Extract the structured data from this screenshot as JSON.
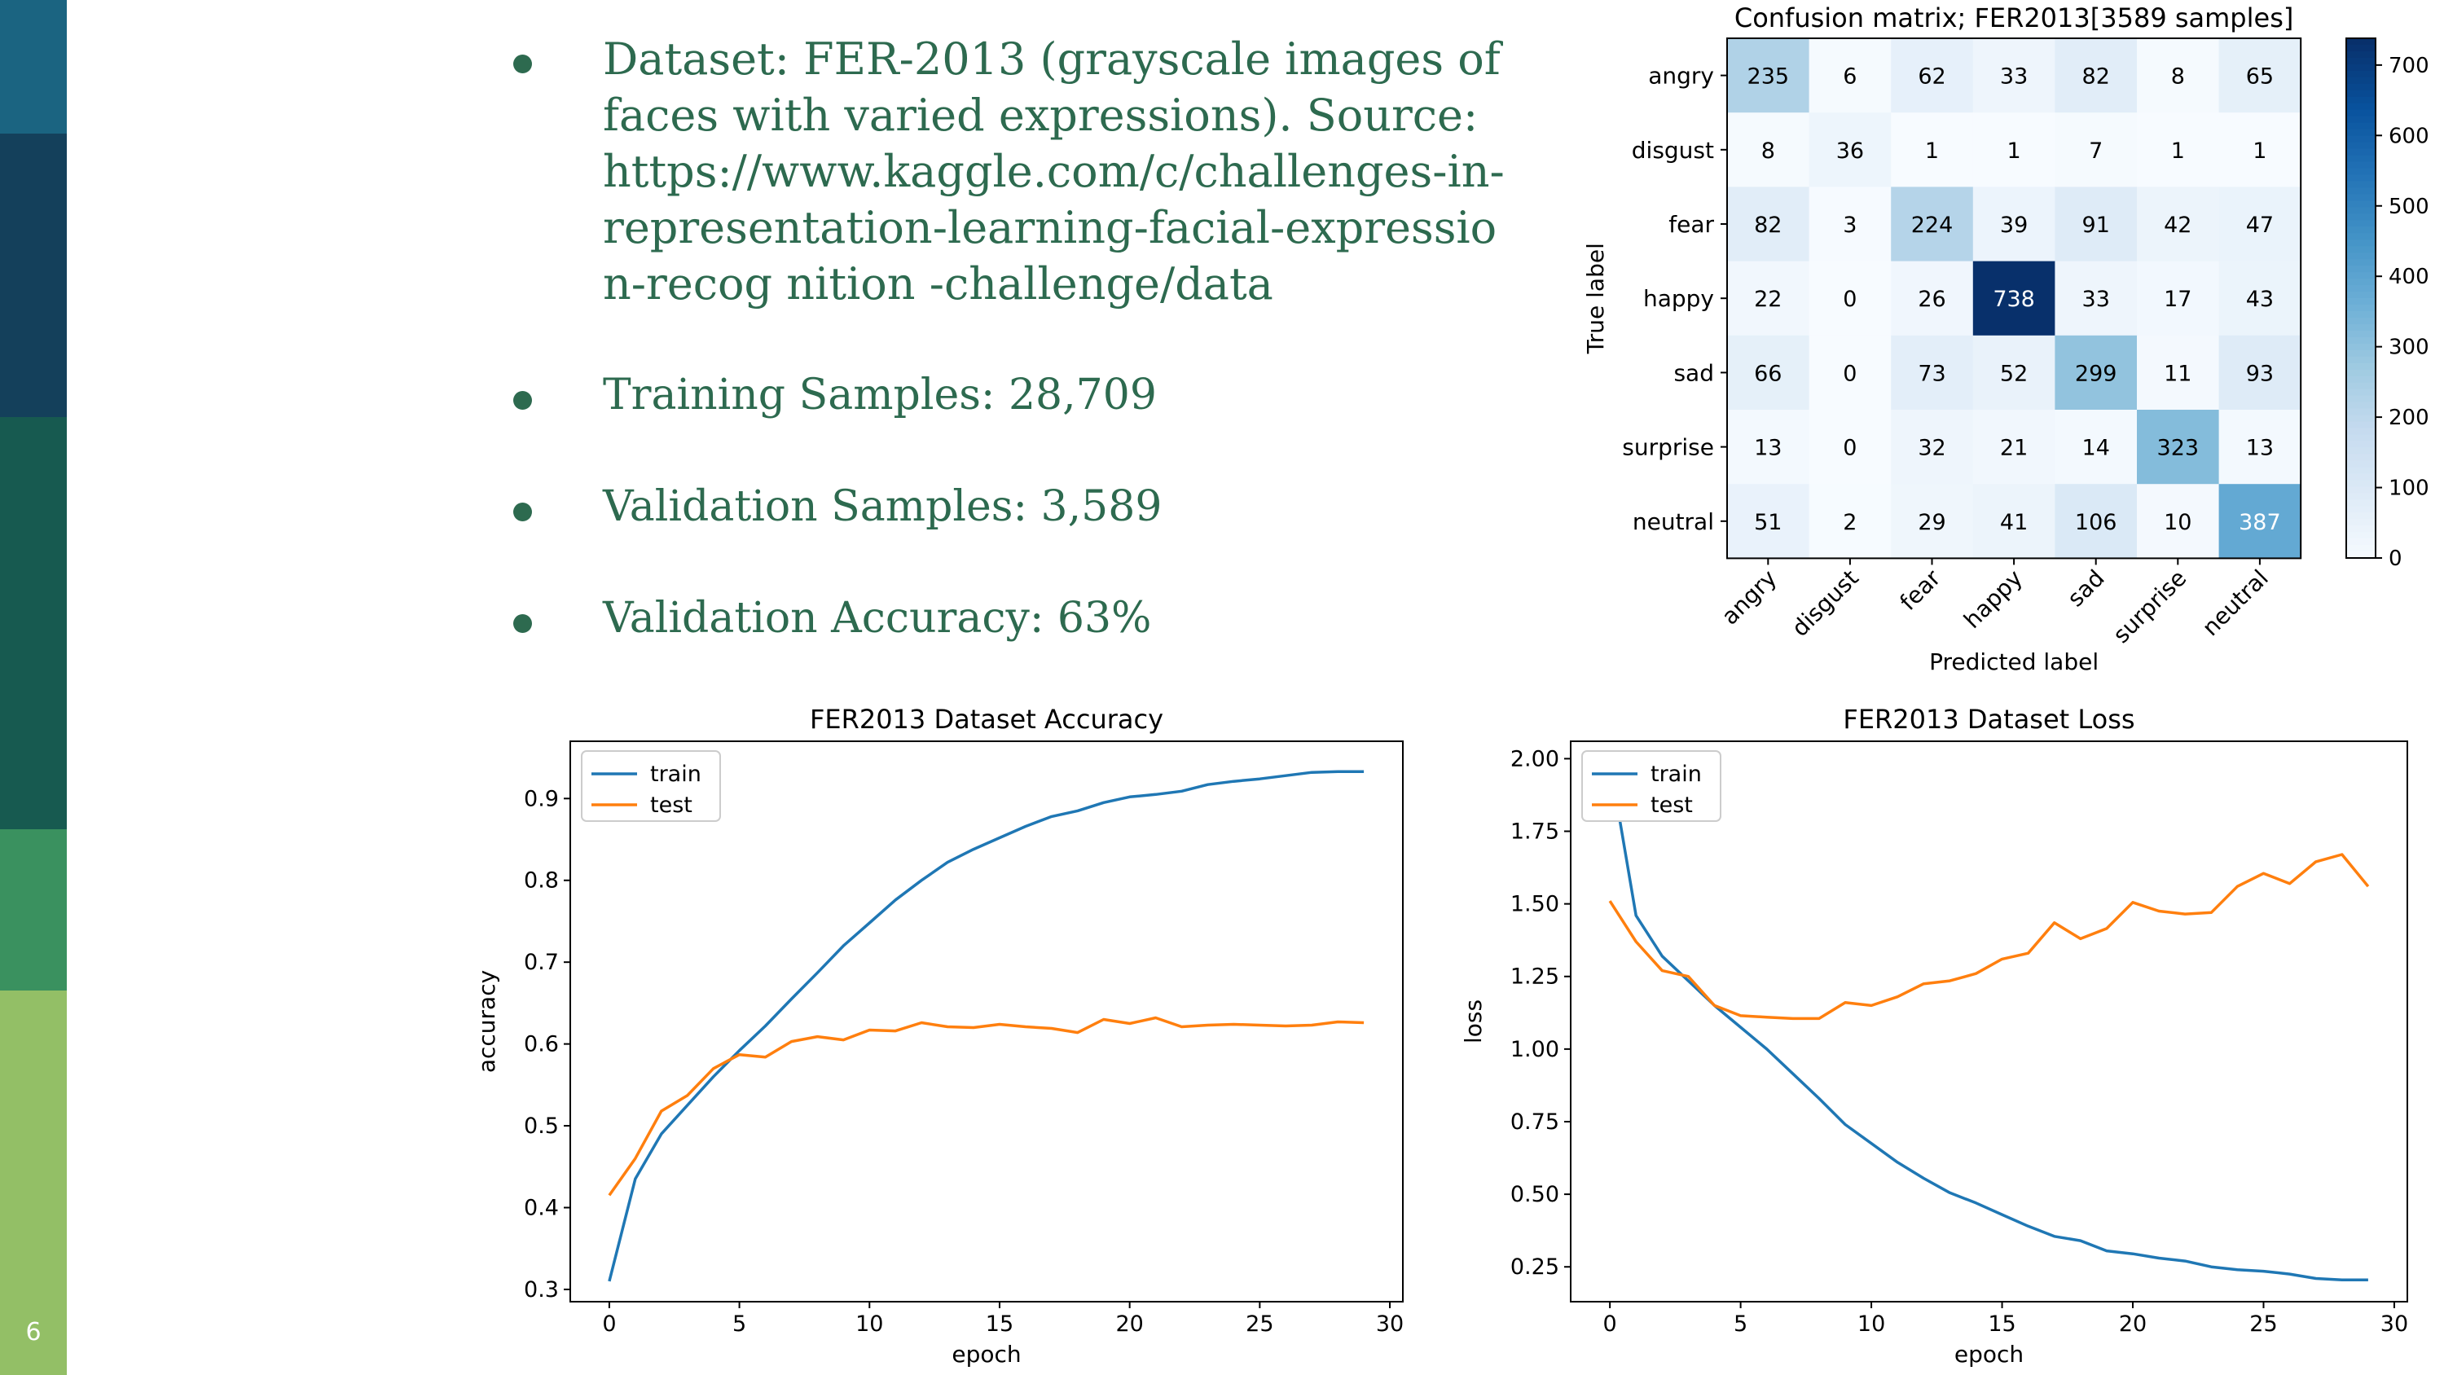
{
  "slide": {
    "number": "6",
    "strip_colors": [
      "#1b6481",
      "#14405b",
      "#175a50",
      "#3a915f",
      "#93bf66"
    ],
    "text_color": "#2d6a4f"
  },
  "bullets": [
    {
      "text": "Dataset: FER-2013 (grayscale images of faces with varied expressions). Source: https://www.kaggle.com/c/challenges-in-representation-learning-facial-expression-recog nition -challenge/data"
    },
    {
      "text": "Training Samples: 28,709"
    },
    {
      "text": "Validation Samples: 3,589"
    },
    {
      "text": "Validation Accuracy: 63%"
    }
  ],
  "chart_data": [
    {
      "type": "heatmap",
      "title": "Confusion matrix; FER2013[3589 samples]",
      "xlabel": "Predicted label",
      "ylabel": "True label",
      "labels": [
        "angry",
        "disgust",
        "fear",
        "happy",
        "sad",
        "surprise",
        "neutral"
      ],
      "matrix": [
        [
          235,
          6,
          62,
          33,
          82,
          8,
          65
        ],
        [
          8,
          36,
          1,
          1,
          7,
          1,
          1
        ],
        [
          82,
          3,
          224,
          39,
          91,
          42,
          47
        ],
        [
          22,
          0,
          26,
          738,
          33,
          17,
          43
        ],
        [
          66,
          0,
          73,
          52,
          299,
          11,
          93
        ],
        [
          13,
          0,
          32,
          21,
          14,
          323,
          13
        ],
        [
          51,
          2,
          29,
          41,
          106,
          10,
          387
        ]
      ],
      "colorbar_ticks": [
        0,
        100,
        200,
        300,
        400,
        500,
        600,
        700
      ],
      "vmin": 0,
      "vmax": 738,
      "colormap": "Blues"
    },
    {
      "type": "line",
      "title": "FER2013 Dataset Accuracy",
      "xlabel": "epoch",
      "ylabel": "accuracy",
      "xlim": [
        -1.5,
        30.5
      ],
      "ylim": [
        0.285,
        0.97
      ],
      "xticks": [
        0,
        5,
        10,
        15,
        20,
        25,
        30
      ],
      "yticks": [
        0.3,
        0.4,
        0.5,
        0.6,
        0.7,
        0.8,
        0.9
      ],
      "legend_loc": "upper left",
      "x": [
        0,
        1,
        2,
        3,
        4,
        5,
        6,
        7,
        8,
        9,
        10,
        11,
        12,
        13,
        14,
        15,
        16,
        17,
        18,
        19,
        20,
        21,
        22,
        23,
        24,
        25,
        26,
        27,
        28,
        29
      ],
      "series": [
        {
          "name": "train",
          "color": "#1f77b4",
          "values": [
            0.31,
            0.435,
            0.49,
            0.525,
            0.56,
            0.592,
            0.622,
            0.655,
            0.687,
            0.72,
            0.748,
            0.776,
            0.8,
            0.822,
            0.838,
            0.852,
            0.866,
            0.878,
            0.885,
            0.895,
            0.902,
            0.905,
            0.909,
            0.917,
            0.921,
            0.924,
            0.928,
            0.932,
            0.933,
            0.933
          ]
        },
        {
          "name": "test",
          "color": "#ff7f0e",
          "values": [
            0.415,
            0.46,
            0.518,
            0.537,
            0.57,
            0.587,
            0.584,
            0.603,
            0.609,
            0.605,
            0.617,
            0.616,
            0.626,
            0.621,
            0.62,
            0.624,
            0.621,
            0.619,
            0.614,
            0.63,
            0.625,
            0.632,
            0.621,
            0.623,
            0.624,
            0.623,
            0.622,
            0.623,
            0.627,
            0.626
          ]
        }
      ]
    },
    {
      "type": "line",
      "title": "FER2013 Dataset Loss",
      "xlabel": "epoch",
      "ylabel": "loss",
      "xlim": [
        -1.5,
        30.5
      ],
      "ylim": [
        0.13,
        2.06
      ],
      "xticks": [
        0,
        5,
        10,
        15,
        20,
        25,
        30
      ],
      "yticks": [
        0.25,
        0.5,
        0.75,
        1.0,
        1.25,
        1.5,
        1.75,
        2.0
      ],
      "ytick_labels": [
        "0.25",
        "0.50",
        "0.75",
        "1.00",
        "1.25",
        "1.50",
        "1.75",
        "2.00"
      ],
      "legend_loc": "upper left",
      "x": [
        0,
        1,
        2,
        3,
        4,
        5,
        6,
        7,
        8,
        9,
        10,
        11,
        12,
        13,
        14,
        15,
        16,
        17,
        18,
        19,
        20,
        21,
        22,
        23,
        24,
        25,
        26,
        27,
        28,
        29
      ],
      "series": [
        {
          "name": "train",
          "color": "#1f77b4",
          "values": [
            1.99,
            1.46,
            1.32,
            1.235,
            1.15,
            1.075,
            1.0,
            0.915,
            0.83,
            0.74,
            0.675,
            0.61,
            0.555,
            0.505,
            0.47,
            0.43,
            0.39,
            0.355,
            0.34,
            0.305,
            0.295,
            0.28,
            0.27,
            0.25,
            0.24,
            0.235,
            0.225,
            0.21,
            0.205,
            0.205
          ]
        },
        {
          "name": "test",
          "color": "#ff7f0e",
          "values": [
            1.51,
            1.37,
            1.27,
            1.25,
            1.15,
            1.115,
            1.11,
            1.105,
            1.105,
            1.16,
            1.15,
            1.18,
            1.225,
            1.235,
            1.26,
            1.31,
            1.33,
            1.435,
            1.38,
            1.415,
            1.505,
            1.475,
            1.465,
            1.47,
            1.56,
            1.605,
            1.57,
            1.645,
            1.67,
            1.56
          ]
        }
      ]
    }
  ]
}
